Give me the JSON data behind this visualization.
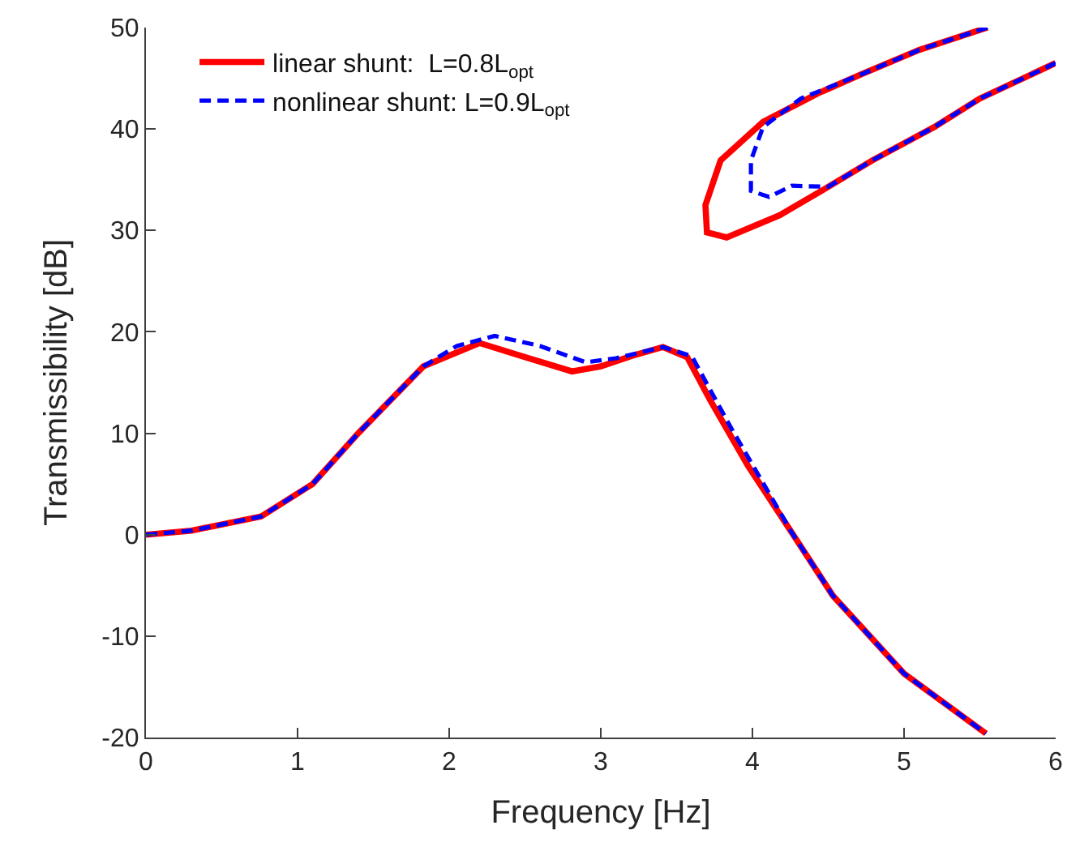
{
  "chart_data": {
    "type": "line",
    "xlabel": "Frequency [Hz]",
    "ylabel": "Transmissibility [dB]",
    "xlim": [
      0,
      6
    ],
    "xticks": [
      0,
      1,
      2,
      3,
      4,
      5,
      6
    ],
    "ylim": [
      -20,
      50
    ],
    "yticks": [
      -20,
      -10,
      0,
      10,
      20,
      30,
      40,
      50
    ],
    "legend": "top left",
    "marker": "none",
    "series": [
      {
        "name": "linear shunt:  L=0.8L$_{opt}$",
        "color": "#ff0000",
        "line_style": "solid",
        "x": [
          0,
          0.3,
          0.76,
          1.1,
          1.4,
          1.83,
          2.2,
          2.5,
          2.81,
          3.0,
          3.2,
          3.41,
          3.57,
          3.72,
          3.97,
          4.26,
          4.53,
          5.0,
          5.54
        ],
        "values": [
          0,
          0.4,
          1.8,
          5,
          10,
          16.6,
          18.9,
          17.5,
          16.1,
          16.6,
          17.6,
          18.5,
          17.5,
          13.3,
          6.8,
          0.2,
          -6,
          -13.7,
          -19.6
        ]
      },
      {
        "color": "#ff0000",
        "line_style": "solid",
        "x": [
          5.55,
          5.1,
          4.72,
          4.43,
          4.07,
          3.79,
          3.69,
          3.7,
          3.83,
          4.18,
          4.5,
          4.79,
          5.2,
          5.5,
          6.0
        ],
        "values": [
          50,
          47.8,
          45.4,
          43.5,
          40.7,
          36.9,
          32.5,
          29.8,
          29.3,
          31.5,
          34.3,
          36.9,
          40.2,
          43,
          46.5
        ]
      },
      {
        "name": "nonlinear shunt: L=0.9L$_{opt}$",
        "color": "#0000ff",
        "line_style": "dashed",
        "x": [
          0,
          0.3,
          0.76,
          1.1,
          1.4,
          1.83,
          2.05,
          2.3,
          2.6,
          2.9,
          3.1,
          3.41,
          3.6,
          3.86,
          4.07,
          4.26,
          4.53,
          5.0,
          5.54
        ],
        "values": [
          0,
          0.4,
          1.8,
          5,
          10,
          16.6,
          18.6,
          19.6,
          18.6,
          17,
          17.4,
          18.5,
          17.6,
          10.5,
          5.1,
          0.2,
          -6,
          -13.7,
          -19.6
        ]
      },
      {
        "color": "#0000ff",
        "line_style": "dashed",
        "x": [
          5.55,
          5.1,
          4.72,
          4.32,
          4.07,
          3.99,
          3.99,
          4.11,
          4.26,
          4.5,
          4.79,
          5.2,
          5.5,
          6.0
        ],
        "values": [
          50,
          47.8,
          45.4,
          43,
          40.2,
          36.9,
          33.9,
          33.3,
          34.4,
          34.3,
          36.9,
          40.2,
          43,
          46.5
        ]
      }
    ]
  }
}
